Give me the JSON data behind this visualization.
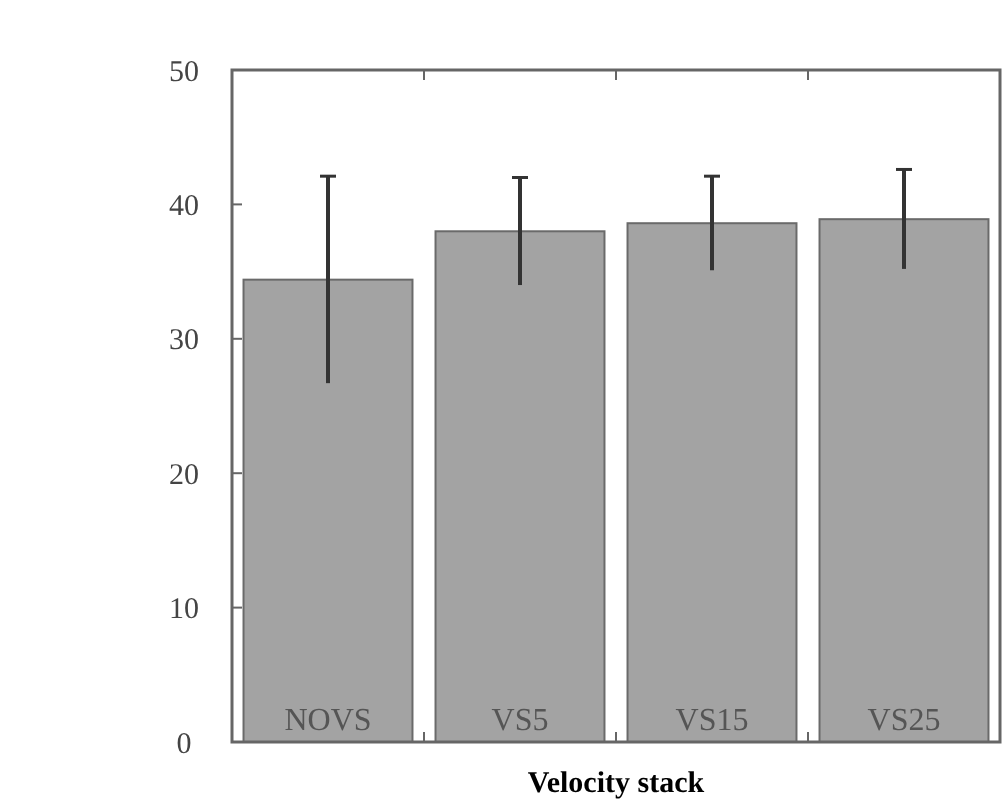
{
  "chart_data": {
    "type": "bar",
    "xlabel": "Velocity stack",
    "categories": [
      "NOVS",
      "VS5",
      "VS15",
      "VS25"
    ],
    "values": [
      34.4,
      38.0,
      38.6,
      38.9
    ],
    "errors": [
      7.7,
      4.0,
      3.5,
      3.7
    ],
    "color": "#a3a3a3",
    "ylim": [
      0,
      50
    ],
    "yticks": [
      0,
      10,
      20,
      30,
      40,
      50
    ],
    "grid": false
  }
}
